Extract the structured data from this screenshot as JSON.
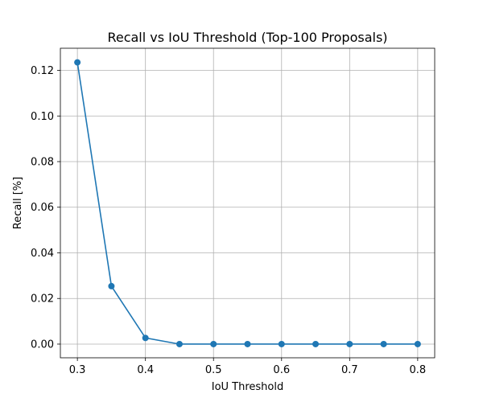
{
  "chart_data": {
    "type": "line",
    "title": "Recall vs IoU Threshold (Top-100 Proposals)",
    "xlabel": "IoU Threshold",
    "ylabel": "Recall [%]",
    "xlim": [
      0.275,
      0.825
    ],
    "ylim": [
      -0.006,
      0.1297
    ],
    "x_ticks": [
      0.3,
      0.4,
      0.5,
      0.6,
      0.7,
      0.8
    ],
    "x_tick_labels": [
      "0.3",
      "0.4",
      "0.5",
      "0.6",
      "0.7",
      "0.8"
    ],
    "y_ticks": [
      0.0,
      0.02,
      0.04,
      0.06,
      0.08,
      0.1,
      0.12
    ],
    "y_tick_labels": [
      "0.00",
      "0.02",
      "0.04",
      "0.06",
      "0.08",
      "0.10",
      "0.12"
    ],
    "grid": true,
    "marker": "circle",
    "color": "#1f77b4",
    "series": [
      {
        "x": [
          0.3,
          0.35,
          0.4,
          0.45,
          0.5,
          0.55,
          0.6,
          0.65,
          0.7,
          0.75,
          0.8
        ],
        "values": [
          0.1235,
          0.0254,
          0.0027,
          0.0,
          0.0,
          0.0,
          0.0,
          0.0,
          0.0,
          0.0,
          0.0
        ]
      }
    ]
  }
}
